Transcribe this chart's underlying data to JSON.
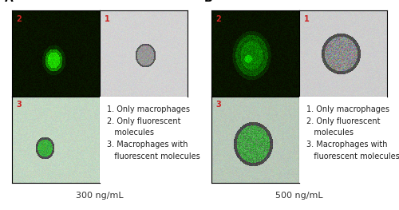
{
  "panel_A_label": "A",
  "panel_B_label": "B",
  "caption_A": "300 ng/mL",
  "caption_B": "500 ng/mL",
  "legend_lines_A": "1. Only macrophages\n2. Only fluorescent\n   molecules\n3. Macrophages with\n   fluorescent molecules",
  "legend_lines_B": "1. Only macrophages\n2. Only fluorescent\n   molecules\n3. Macrophages with\n   fluorescent molecules",
  "number_color": "#cc2222",
  "bg_dark_green": [
    10,
    22,
    10
  ],
  "bg_light_green_A": [
    195,
    215,
    195
  ],
  "bg_gray_A": [
    210,
    210,
    210
  ],
  "bg_light_green_B": [
    185,
    200,
    185
  ],
  "bg_gray_B": [
    200,
    200,
    200
  ],
  "panel_label_fontsize": 10,
  "caption_fontsize": 8,
  "legend_fontsize": 7,
  "number_fontsize": 7
}
